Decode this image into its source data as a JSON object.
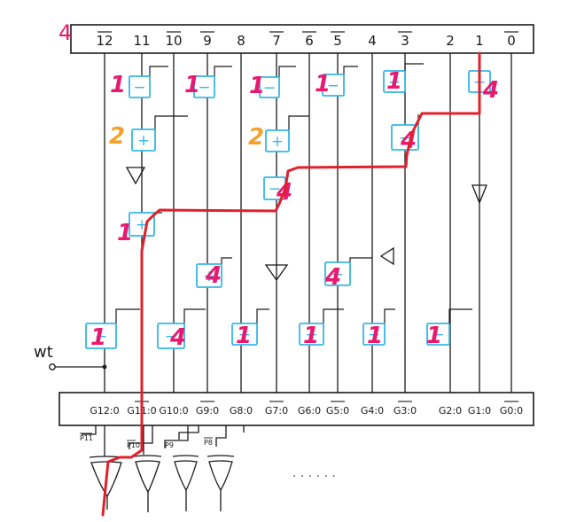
{
  "corner_label": "4",
  "input_bits": [
    "12",
    "11",
    "10",
    "9",
    "8",
    "7",
    "6",
    "5",
    "4",
    "3",
    "2",
    "1",
    "0"
  ],
  "input_bit_bars": [
    true,
    false,
    true,
    true,
    false,
    true,
    true,
    true,
    false,
    true,
    false,
    false,
    true
  ],
  "output_labels": [
    "G12:0",
    "G11:0",
    "G10:0",
    "G9:0",
    "G8:0",
    "G7:0",
    "G6:0",
    "G5:0",
    "G4:0",
    "G3:0",
    "G2:0",
    "G1:0",
    "G0:0"
  ],
  "output_label_bars": [
    false,
    true,
    false,
    true,
    false,
    true,
    false,
    true,
    false,
    true,
    false,
    false,
    true
  ],
  "wt_label": "wt",
  "ellipsis": ". . . . . .",
  "pin_labels": [
    "P11",
    "P10",
    "P9",
    "P8"
  ],
  "cells": [
    {
      "id": "c1",
      "sign": "−",
      "note": "1"
    },
    {
      "id": "c2",
      "sign": "−",
      "note": "1"
    },
    {
      "id": "c3",
      "sign": "−",
      "note": "1"
    },
    {
      "id": "c4",
      "sign": "−",
      "note": "1"
    },
    {
      "id": "c5",
      "sign": "−",
      "note": "1"
    },
    {
      "id": "c6",
      "sign": "−",
      "note": "4"
    },
    {
      "id": "c7",
      "sign": "+",
      "note": "2"
    },
    {
      "id": "c8",
      "sign": "+",
      "note": "2"
    },
    {
      "id": "c9",
      "sign": "−",
      "note": "4"
    },
    {
      "id": "c10",
      "sign": "−",
      "note": "4"
    },
    {
      "id": "c11",
      "sign": "+",
      "note": "1"
    },
    {
      "id": "c12",
      "sign": "+",
      "note": "4"
    },
    {
      "id": "c13",
      "sign": "−",
      "note": "4"
    },
    {
      "id": "c14",
      "sign": "−",
      "note": "1"
    },
    {
      "id": "c15",
      "sign": "−",
      "note": "4"
    },
    {
      "id": "c16",
      "sign": "−",
      "note": "1"
    },
    {
      "id": "c17",
      "sign": "−",
      "note": "1"
    },
    {
      "id": "c18",
      "sign": "−",
      "note": "1"
    },
    {
      "id": "c19",
      "sign": "−",
      "note": "1"
    }
  ],
  "colors": {
    "ink": "#1a1a1a",
    "cell_blue": "#36b7e8",
    "note_pink": "#e8196e",
    "note_orange": "#f2a22c",
    "critical_path": "#e0202a"
  }
}
